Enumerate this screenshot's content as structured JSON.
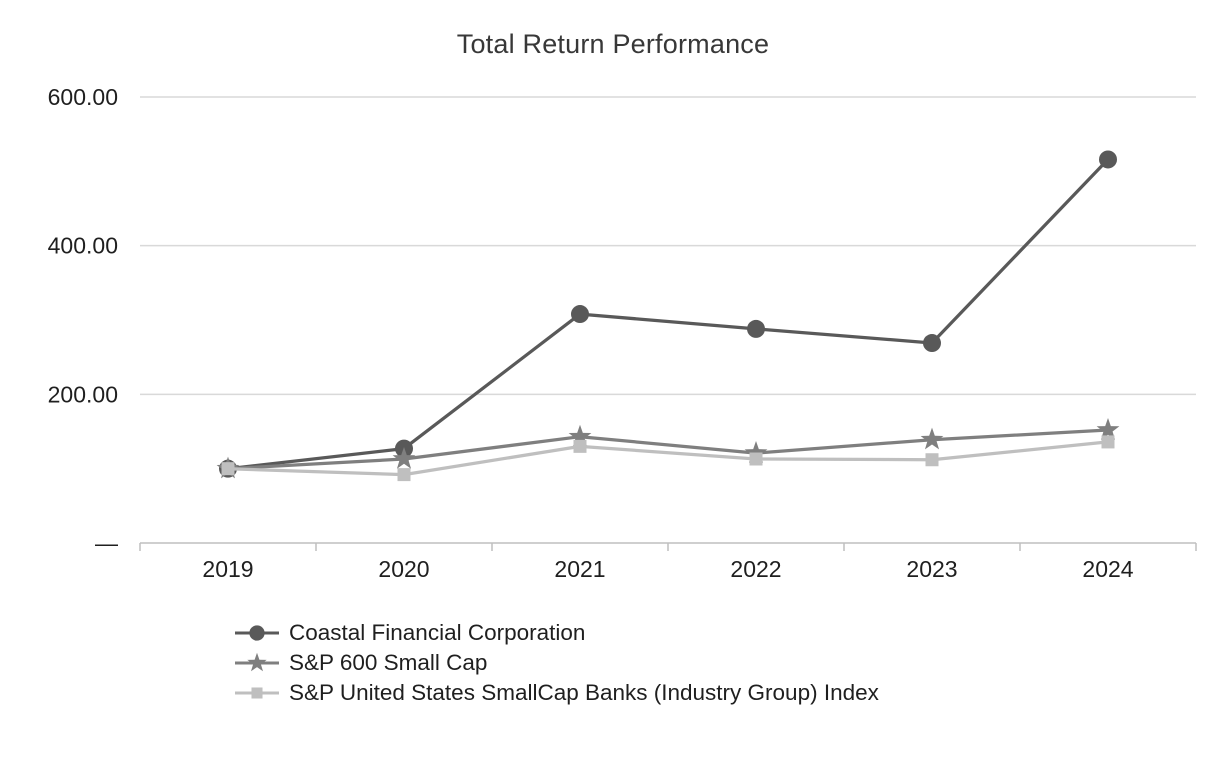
{
  "title": "Total Return Performance",
  "chart_data": {
    "type": "line",
    "title": "Total Return Performance",
    "xlabel": "",
    "ylabel": "",
    "categories": [
      "2019",
      "2020",
      "2021",
      "2022",
      "2023",
      "2024"
    ],
    "series": [
      {
        "name": "Coastal Financial Corporation",
        "marker": "circle",
        "color": "#595959",
        "values": [
          100,
          127,
          308,
          288,
          269,
          516
        ]
      },
      {
        "name": "S&P 600 Small Cap",
        "marker": "star",
        "color": "#7f7f7f",
        "values": [
          100,
          113,
          143,
          121,
          139,
          152
        ]
      },
      {
        "name": "S&P United States SmallCap Banks (Industry Group) Index",
        "marker": "square",
        "color": "#bfbfbf",
        "values": [
          100,
          92,
          130,
          113,
          112,
          136
        ]
      }
    ],
    "ylim": [
      0,
      600
    ],
    "yticks": [
      {
        "value": 0,
        "label": "—"
      },
      {
        "value": 200,
        "label": "200.00"
      },
      {
        "value": 400,
        "label": "400.00"
      },
      {
        "value": 600,
        "label": "600.00"
      }
    ],
    "grid": true,
    "legend_position": "bottom-left",
    "gridline_color": "#d9d9d9",
    "axis_color": "#bfbfbf",
    "text_color": "#1f1f1f"
  }
}
